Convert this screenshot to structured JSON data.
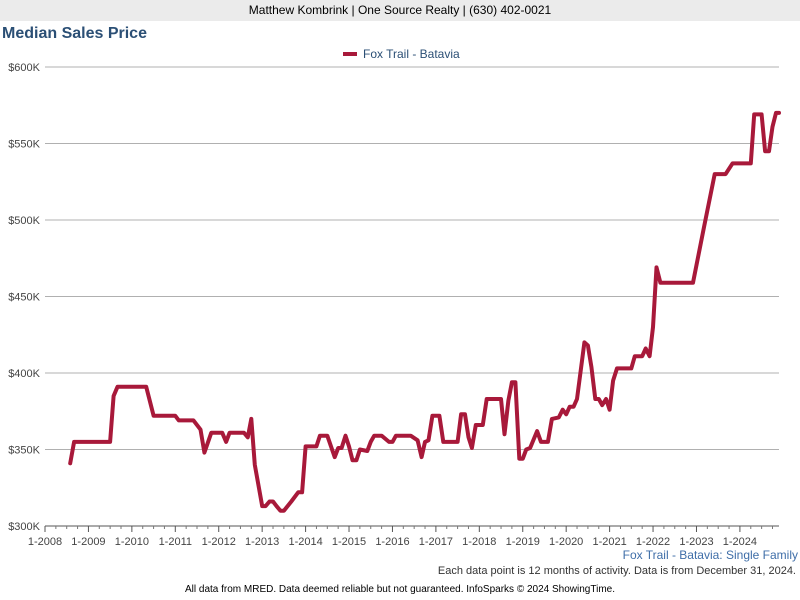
{
  "header": {
    "text": "Matthew Kombrink | One Source Realty | (630) 402-0021"
  },
  "chart_data": {
    "type": "line",
    "title": "Median Sales Price",
    "xlabel": "",
    "ylabel": "",
    "ylim": [
      300000,
      600000
    ],
    "yticks": [
      300000,
      350000,
      400000,
      450000,
      500000,
      550000,
      600000
    ],
    "ytick_labels": [
      "$300K",
      "$350K",
      "$400K",
      "$450K",
      "$500K",
      "$550K",
      "$600K"
    ],
    "xlim": [
      2008.0,
      2024.9
    ],
    "xticks": [
      2008,
      2009,
      2010,
      2011,
      2012,
      2013,
      2014,
      2015,
      2016,
      2017,
      2018,
      2019,
      2020,
      2021,
      2022,
      2023,
      2024
    ],
    "xtick_labels": [
      "1-2008",
      "1-2009",
      "1-2010",
      "1-2011",
      "1-2012",
      "1-2013",
      "1-2014",
      "1-2015",
      "1-2016",
      "1-2017",
      "1-2018",
      "1-2019",
      "1-2020",
      "1-2021",
      "1-2022",
      "1-2023",
      "1-2024"
    ],
    "legend_position": "top-center",
    "series": [
      {
        "name": "Fox Trail - Batavia",
        "color": "#a8193a",
        "points": [
          [
            2008.58,
            341000
          ],
          [
            2008.67,
            355000
          ],
          [
            2008.83,
            355000
          ],
          [
            2009.0,
            355000
          ],
          [
            2009.17,
            355000
          ],
          [
            2009.33,
            355000
          ],
          [
            2009.5,
            355000
          ],
          [
            2009.58,
            385000
          ],
          [
            2009.67,
            391000
          ],
          [
            2009.83,
            391000
          ],
          [
            2010.0,
            391000
          ],
          [
            2010.17,
            391000
          ],
          [
            2010.33,
            391000
          ],
          [
            2010.5,
            372000
          ],
          [
            2010.67,
            372000
          ],
          [
            2010.83,
            372000
          ],
          [
            2011.0,
            372000
          ],
          [
            2011.08,
            369000
          ],
          [
            2011.25,
            369000
          ],
          [
            2011.42,
            369000
          ],
          [
            2011.58,
            363000
          ],
          [
            2011.67,
            348000
          ],
          [
            2011.83,
            361000
          ],
          [
            2012.0,
            361000
          ],
          [
            2012.08,
            361000
          ],
          [
            2012.17,
            355000
          ],
          [
            2012.25,
            361000
          ],
          [
            2012.42,
            361000
          ],
          [
            2012.58,
            361000
          ],
          [
            2012.67,
            358000
          ],
          [
            2012.75,
            370000
          ],
          [
            2012.83,
            340000
          ],
          [
            2013.0,
            313000
          ],
          [
            2013.08,
            313000
          ],
          [
            2013.17,
            316000
          ],
          [
            2013.25,
            316000
          ],
          [
            2013.33,
            313000
          ],
          [
            2013.42,
            310000
          ],
          [
            2013.5,
            310000
          ],
          [
            2013.67,
            316000
          ],
          [
            2013.83,
            322000
          ],
          [
            2013.92,
            322000
          ],
          [
            2014.0,
            352000
          ],
          [
            2014.17,
            352000
          ],
          [
            2014.25,
            352000
          ],
          [
            2014.33,
            359000
          ],
          [
            2014.5,
            359000
          ],
          [
            2014.67,
            345000
          ],
          [
            2014.75,
            351000
          ],
          [
            2014.83,
            351000
          ],
          [
            2014.92,
            359000
          ],
          [
            2015.0,
            352000
          ],
          [
            2015.08,
            343000
          ],
          [
            2015.17,
            343000
          ],
          [
            2015.25,
            350000
          ],
          [
            2015.42,
            349000
          ],
          [
            2015.5,
            355000
          ],
          [
            2015.58,
            359000
          ],
          [
            2015.75,
            359000
          ],
          [
            2015.92,
            355000
          ],
          [
            2016.0,
            355000
          ],
          [
            2016.08,
            359000
          ],
          [
            2016.25,
            359000
          ],
          [
            2016.42,
            359000
          ],
          [
            2016.58,
            356000
          ],
          [
            2016.67,
            345000
          ],
          [
            2016.75,
            355000
          ],
          [
            2016.83,
            356000
          ],
          [
            2016.92,
            372000
          ],
          [
            2017.08,
            372000
          ],
          [
            2017.17,
            355000
          ],
          [
            2017.33,
            355000
          ],
          [
            2017.5,
            355000
          ],
          [
            2017.58,
            373000
          ],
          [
            2017.67,
            373000
          ],
          [
            2017.75,
            358000
          ],
          [
            2017.83,
            351000
          ],
          [
            2017.92,
            366000
          ],
          [
            2018.08,
            366000
          ],
          [
            2018.17,
            383000
          ],
          [
            2018.33,
            383000
          ],
          [
            2018.5,
            383000
          ],
          [
            2018.58,
            360000
          ],
          [
            2018.67,
            382000
          ],
          [
            2018.75,
            394000
          ],
          [
            2018.83,
            394000
          ],
          [
            2018.92,
            344000
          ],
          [
            2019.0,
            344000
          ],
          [
            2019.08,
            350000
          ],
          [
            2019.17,
            351000
          ],
          [
            2019.33,
            362000
          ],
          [
            2019.42,
            355000
          ],
          [
            2019.58,
            355000
          ],
          [
            2019.67,
            370000
          ],
          [
            2019.83,
            371000
          ],
          [
            2019.92,
            376000
          ],
          [
            2020.0,
            373000
          ],
          [
            2020.08,
            378000
          ],
          [
            2020.17,
            378000
          ],
          [
            2020.25,
            383000
          ],
          [
            2020.42,
            420000
          ],
          [
            2020.5,
            418000
          ],
          [
            2020.58,
            404000
          ],
          [
            2020.67,
            383000
          ],
          [
            2020.75,
            383000
          ],
          [
            2020.83,
            379000
          ],
          [
            2020.92,
            383000
          ],
          [
            2021.0,
            376000
          ],
          [
            2021.08,
            395000
          ],
          [
            2021.17,
            403000
          ],
          [
            2021.33,
            403000
          ],
          [
            2021.5,
            403000
          ],
          [
            2021.58,
            411000
          ],
          [
            2021.75,
            411000
          ],
          [
            2021.83,
            416000
          ],
          [
            2021.92,
            411000
          ],
          [
            2022.0,
            430000
          ],
          [
            2022.08,
            469000
          ],
          [
            2022.17,
            459000
          ],
          [
            2022.33,
            459000
          ],
          [
            2022.58,
            459000
          ],
          [
            2022.92,
            459000
          ],
          [
            2023.17,
            495000
          ],
          [
            2023.42,
            530000
          ],
          [
            2023.67,
            530000
          ],
          [
            2023.83,
            537000
          ],
          [
            2024.0,
            537000
          ],
          [
            2024.25,
            537000
          ],
          [
            2024.33,
            569000
          ],
          [
            2024.5,
            569000
          ],
          [
            2024.58,
            545000
          ],
          [
            2024.67,
            545000
          ],
          [
            2024.75,
            561000
          ],
          [
            2024.83,
            570000
          ],
          [
            2024.9,
            570000
          ]
        ]
      }
    ]
  },
  "footer": {
    "subtitle": "Fox Trail - Batavia: Single Family",
    "note": "Each data point is 12 months of activity. Data is from December 31, 2024.",
    "credit": "All data from MRED. Data deemed reliable but not guaranteed. InfoSparks © 2024 ShowingTime."
  },
  "colors": {
    "title": "#2b4f75",
    "grid": "#b0b0b0",
    "axis_text": "#444444",
    "subtitle": "#3f6ea8"
  }
}
